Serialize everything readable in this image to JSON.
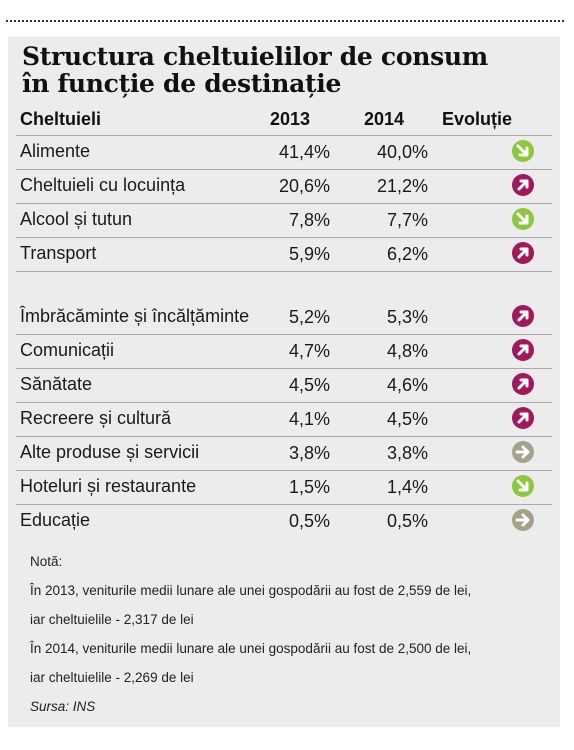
{
  "title": {
    "line1": "Structura cheltuielilor de consum",
    "line2": "în funcție de destinație"
  },
  "header": {
    "col1": "Cheltuieli",
    "col2": "2013",
    "col3": "2014",
    "col4": "Evoluție"
  },
  "colors": {
    "down": "#8dc63f",
    "up": "#a0195a",
    "flat": "#a6a28a"
  },
  "rows": [
    {
      "name": "Alimente",
      "v2013": "41,4%",
      "v2014": "40,0%",
      "trend": "down"
    },
    {
      "name": "Cheltuieli cu locuința",
      "v2013": "20,6%",
      "v2014": "21,2%",
      "trend": "up"
    },
    {
      "name": "Alcool și tutun",
      "v2013": "7,8%",
      "v2014": "7,7%",
      "trend": "down"
    },
    {
      "name": "Transport",
      "v2013": "5,9%",
      "v2014": "6,2%",
      "trend": "up"
    },
    {
      "name": "Îmbrăcăminte și încălțăminte",
      "v2013": "5,2%",
      "v2014": "5,3%",
      "trend": "up"
    },
    {
      "name": "Comunicații",
      "v2013": "4,7%",
      "v2014": "4,8%",
      "trend": "up"
    },
    {
      "name": "Sănătate",
      "v2013": "4,5%",
      "v2014": "4,6%",
      "trend": "up"
    },
    {
      "name": "Recreere și cultură",
      "v2013": "4,1%",
      "v2014": "4,5%",
      "trend": "up"
    },
    {
      "name": "Alte produse și servicii",
      "v2013": "3,8%",
      "v2014": "3,8%",
      "trend": "flat"
    },
    {
      "name": "Hoteluri și restaurante",
      "v2013": "1,5%",
      "v2014": "1,4%",
      "trend": "down"
    },
    {
      "name": "Educație",
      "v2013": "0,5%",
      "v2014": "0,5%",
      "trend": "flat"
    }
  ],
  "notes": {
    "label": "Notă:",
    "line1": "În 2013, veniturile medii lunare ale unei gospodării au fost de 2,559 de lei,",
    "line2": "iar cheltuielile - 2,317 de lei",
    "line3": "În 2014, veniturile medii lunare ale unei gospodării au fost de 2,500 de lei,",
    "line4": "iar cheltuielile - 2,269 de lei",
    "source": "Sursa: INS"
  }
}
